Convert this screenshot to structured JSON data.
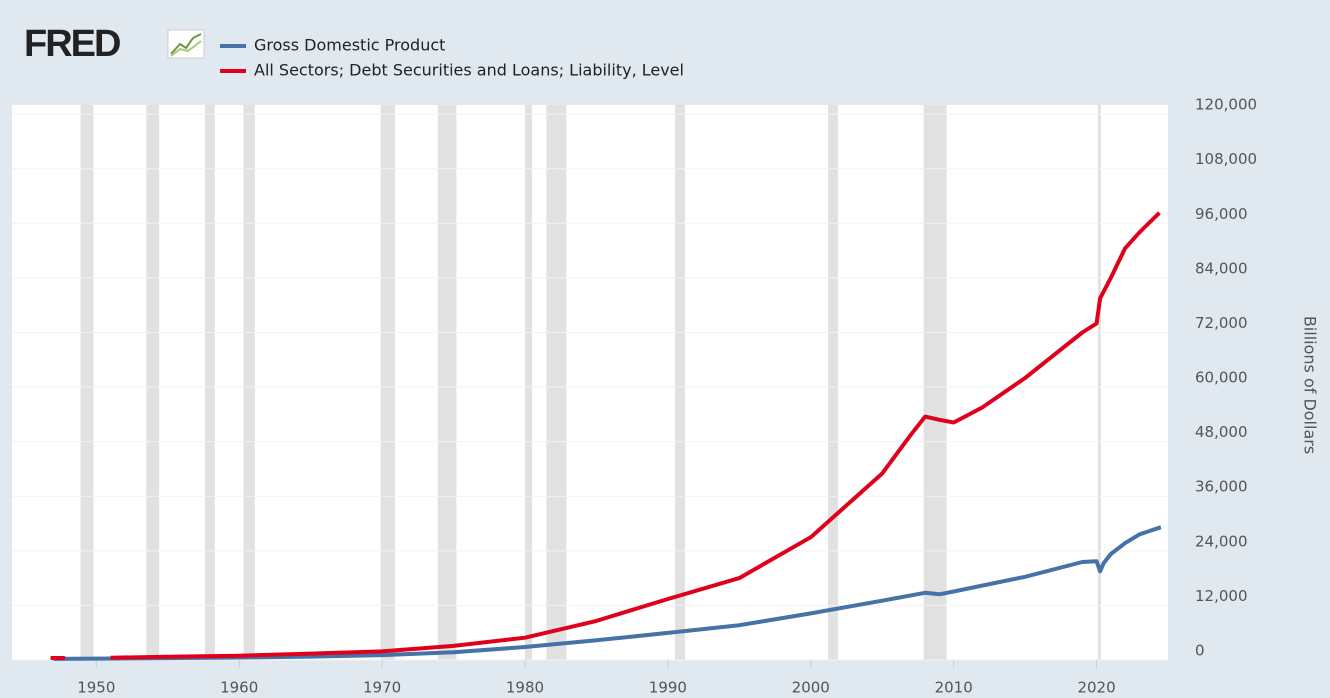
{
  "chart_data": {
    "type": "line",
    "logo": "FRED",
    "y_label": "Billions of Dollars",
    "xlim": [
      1944.1,
      2025.0
    ],
    "xticks": [
      1950,
      1960,
      1970,
      1980,
      1990,
      2000,
      2010,
      2020
    ],
    "ylim": [
      0,
      122000
    ],
    "yticks": [
      0,
      {
        "value": 12000,
        "label": "12,000"
      },
      {
        "value": 24000,
        "label": "24,000"
      },
      {
        "value": 36000,
        "label": "36,000"
      },
      {
        "value": 48000,
        "label": "48,000"
      },
      {
        "value": 60000,
        "label": "60,000"
      },
      {
        "value": 72000,
        "label": "72,000"
      },
      {
        "value": 84000,
        "label": "84,000"
      },
      {
        "value": 96000,
        "label": "96,000"
      },
      {
        "value": 108000,
        "label": "108,000"
      },
      {
        "value": 120000,
        "label": "120,000"
      }
    ],
    "grid": true,
    "recession_color": "#e1e1e1",
    "recessions": [
      [
        1948.9,
        1949.8
      ],
      [
        1953.5,
        1954.4
      ],
      [
        1957.6,
        1958.3
      ],
      [
        1960.3,
        1961.1
      ],
      [
        1969.9,
        1970.9
      ],
      [
        1973.9,
        1975.2
      ],
      [
        1980.0,
        1980.5
      ],
      [
        1981.5,
        1982.9
      ],
      [
        1990.5,
        1991.2
      ],
      [
        2001.2,
        2001.9
      ],
      [
        2007.9,
        2009.5
      ],
      [
        2020.1,
        2020.3
      ]
    ],
    "series": [
      {
        "name": "Gross Domestic Product",
        "color": "#4572a7",
        "x": [
          1947,
          1950,
          1955,
          1960,
          1965,
          1970,
          1975,
          1980,
          1985,
          1990,
          1995,
          2000,
          2005,
          2008,
          2009,
          2010,
          2015,
          2019,
          2020,
          2020.25,
          2020.5,
          2021,
          2022,
          2023,
          2024.5
        ],
        "values": [
          243,
          300,
          427,
          543,
          743,
          1073,
          1684,
          2857,
          4339,
          5963,
          7640,
          10250,
          13039,
          14770,
          14450,
          15050,
          18290,
          21540,
          21700,
          19500,
          21300,
          23300,
          25700,
          27600,
          29200
        ]
      },
      {
        "name": "All Sectors; Debt Securities and Loans; Liability, Level",
        "color": "#e0001b",
        "x": [
          1946.8,
          1947.8,
          1949,
          1951,
          1955,
          1960,
          1965,
          1970,
          1975,
          1980,
          1985,
          1990,
          1995,
          2000,
          2005,
          2007,
          2008,
          2009,
          2010,
          2012,
          2015,
          2017,
          2019,
          2020,
          2020.25,
          2021,
          2022,
          2023,
          2024.4
        ],
        "values": [
          440,
          440,
          null,
          500,
          700,
          950,
          1400,
          1900,
          3100,
          4900,
          8600,
          13400,
          18000,
          27000,
          41000,
          49500,
          53500,
          52800,
          52200,
          55500,
          62000,
          67000,
          72000,
          74000,
          79500,
          84000,
          90500,
          94000,
          98300
        ]
      }
    ]
  }
}
